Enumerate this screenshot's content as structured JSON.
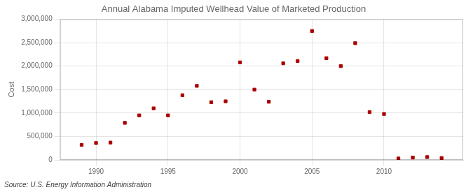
{
  "chart_data": {
    "type": "scatter",
    "title": "Annual Alabama Imputed Wellhead Value of Marketed Production",
    "ylabel": "Cost",
    "annotation": "Source: U.S. Energy Information Administration",
    "x": [
      1989,
      1990,
      1991,
      1992,
      1993,
      1994,
      1995,
      1996,
      1997,
      1998,
      1999,
      2000,
      2001,
      2002,
      2003,
      2004,
      2005,
      2006,
      2007,
      2008,
      2009,
      2010,
      2011,
      2012,
      2013,
      2014
    ],
    "values": [
      320000,
      360000,
      370000,
      790000,
      950000,
      1100000,
      950000,
      1380000,
      1580000,
      1230000,
      1250000,
      2080000,
      1500000,
      1240000,
      2060000,
      2110000,
      2750000,
      2170000,
      2000000,
      2490000,
      1020000,
      980000,
      30000,
      50000,
      60000,
      40000
    ],
    "color": "#aa0000",
    "marker": "square",
    "xlim": [
      1987.5,
      2015.5
    ],
    "xticks": [
      1990,
      1995,
      2000,
      2005,
      2010
    ],
    "ylim": [
      0,
      3000000
    ],
    "yticks": [
      0,
      {
        "value": 500000,
        "label": "500,000"
      },
      {
        "value": 1000000,
        "label": "1,000,000"
      },
      {
        "value": 1500000,
        "label": "1,500,000"
      },
      {
        "value": 2000000,
        "label": "2,000,000"
      },
      {
        "value": 2500000,
        "label": "2,500,000"
      },
      {
        "value": 3000000,
        "label": "3,000,000"
      }
    ],
    "grid": true,
    "legend": false
  }
}
